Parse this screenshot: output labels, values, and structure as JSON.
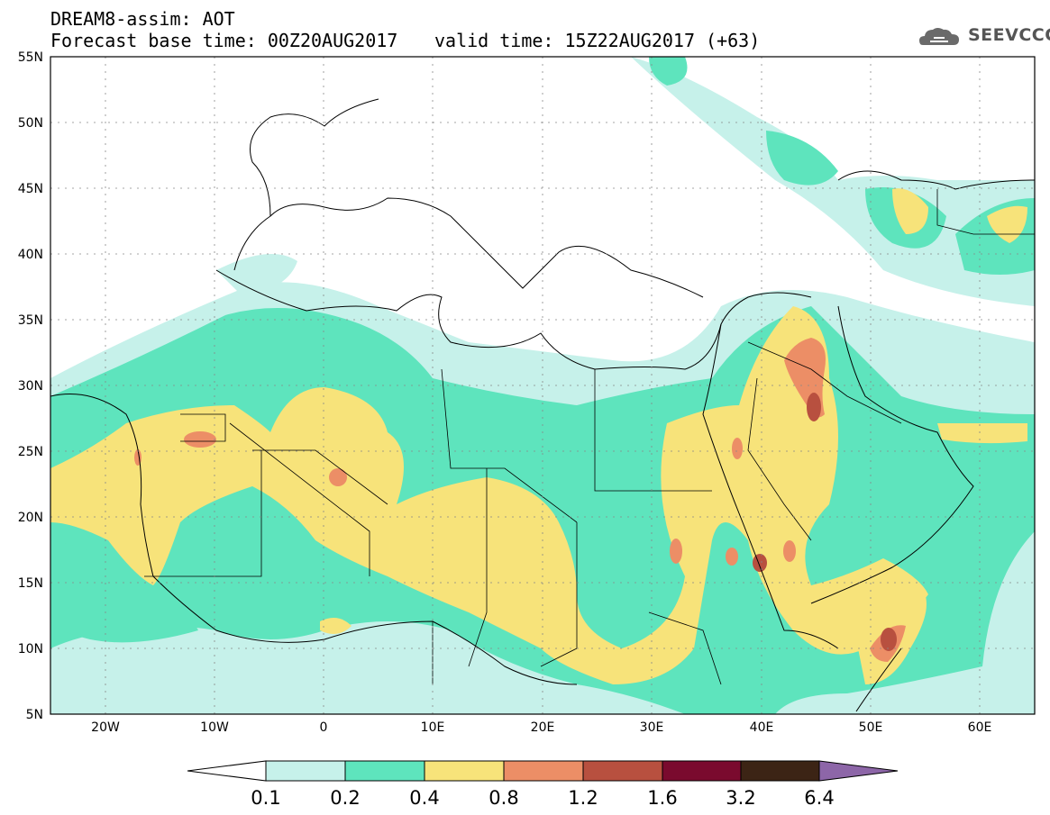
{
  "header": {
    "title": "DREAM8-assim: AOT",
    "base_time": "Forecast base time: 00Z20AUG2017",
    "valid_time": "valid time: 15Z22AUG2017 (+63)",
    "logo_text": "SEEVCCC",
    "logo_icon": "cloud-icon"
  },
  "map": {
    "lon_range": [
      -25,
      65
    ],
    "lat_range": [
      5,
      55
    ],
    "y_ticks": [
      "5N",
      "10N",
      "15N",
      "20N",
      "25N",
      "30N",
      "35N",
      "40N",
      "45N",
      "50N",
      "55N"
    ],
    "x_ticks": [
      "20W",
      "10W",
      "0",
      "10E",
      "20E",
      "30E",
      "40E",
      "50E",
      "60E"
    ],
    "grid": true
  },
  "colorbar": {
    "labels": [
      "0.1",
      "0.2",
      "0.4",
      "0.8",
      "1.2",
      "1.6",
      "3.2",
      "6.4"
    ],
    "colors": [
      "#ffffff",
      "#c6f1ea",
      "#5ee4bd",
      "#f7e37a",
      "#ec8e66",
      "#b8503f",
      "#7a0a2e",
      "#3c2415",
      "#8d66a8"
    ]
  }
}
